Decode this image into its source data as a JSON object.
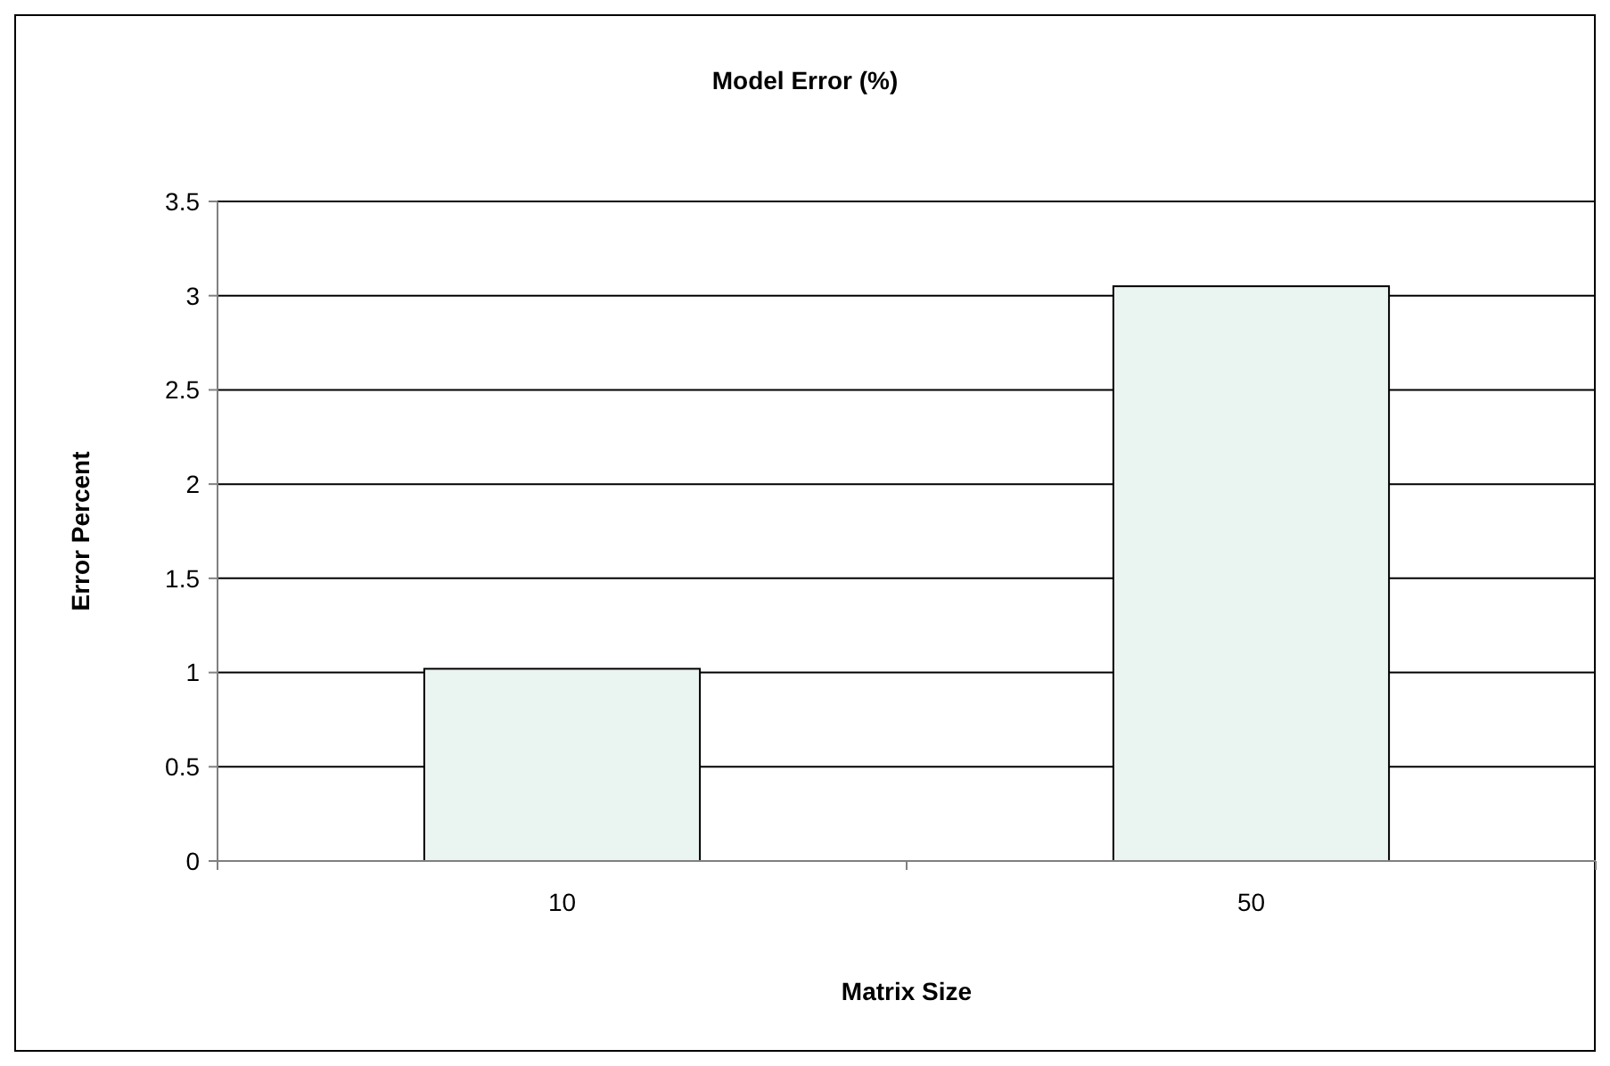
{
  "chart_data": {
    "type": "bar",
    "title": "Model Error (%)",
    "xlabel": "Matrix Size",
    "ylabel": "Error Percent",
    "categories": [
      "10",
      "50"
    ],
    "values": [
      1.02,
      3.05
    ],
    "color": "#eaf4f0",
    "ylim": [
      0,
      3.5
    ],
    "yticks": [
      0,
      0.5,
      1,
      1.5,
      2,
      2.5,
      3,
      3.5
    ],
    "grid": "y"
  }
}
